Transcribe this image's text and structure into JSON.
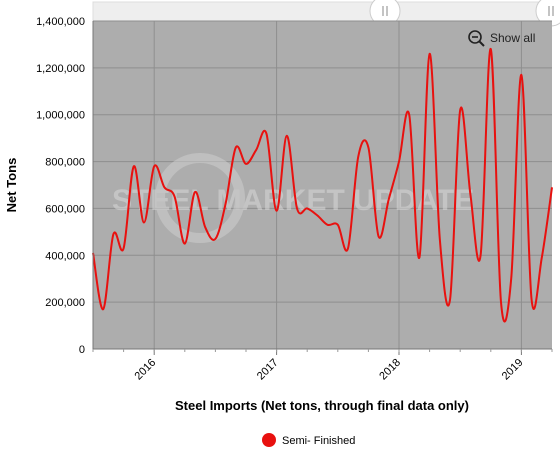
{
  "chart_data": {
    "type": "line",
    "title": "",
    "xlabel": "Steel Imports (Net tons, through final data only)",
    "ylabel": "Net Tons",
    "ylim": [
      0,
      1400000
    ],
    "yticks": [
      0,
      200000,
      400000,
      600000,
      800000,
      1000000,
      1200000,
      1400000
    ],
    "ytick_labels": [
      "0",
      "200,000",
      "400,000",
      "600,000",
      "800,000",
      "1,000,000",
      "1,200,000",
      "1,400,000"
    ],
    "xlim": [
      "2015-07",
      "2019-04"
    ],
    "xticks": [
      "2016-01",
      "2017-01",
      "2018-01",
      "2019-01"
    ],
    "xtick_labels": [
      "2016",
      "2017",
      "2018",
      "2019"
    ],
    "grid": true,
    "legend_position": "bottom-center",
    "series": [
      {
        "name": "Semi- Finished",
        "color": "#e8110f",
        "x": [
          "2015-07",
          "2015-08",
          "2015-09",
          "2015-10",
          "2015-11",
          "2015-12",
          "2016-01",
          "2016-02",
          "2016-03",
          "2016-04",
          "2016-05",
          "2016-06",
          "2016-07",
          "2016-08",
          "2016-09",
          "2016-10",
          "2016-11",
          "2016-12",
          "2017-01",
          "2017-02",
          "2017-03",
          "2017-04",
          "2017-05",
          "2017-06",
          "2017-07",
          "2017-08",
          "2017-09",
          "2017-10",
          "2017-11",
          "2017-12",
          "2018-01",
          "2018-02",
          "2018-03",
          "2018-04",
          "2018-05",
          "2018-06",
          "2018-07",
          "2018-08",
          "2018-09",
          "2018-10",
          "2018-11",
          "2018-12",
          "2019-01",
          "2019-02",
          "2019-03",
          "2019-04"
        ],
        "values": [
          410000,
          170000,
          490000,
          430000,
          780000,
          540000,
          780000,
          690000,
          650000,
          450000,
          670000,
          520000,
          470000,
          620000,
          860000,
          790000,
          850000,
          920000,
          590000,
          910000,
          600000,
          600000,
          570000,
          530000,
          530000,
          430000,
          820000,
          860000,
          480000,
          640000,
          800000,
          1000000,
          390000,
          1260000,
          470000,
          210000,
          1020000,
          660000,
          400000,
          1280000,
          200000,
          300000,
          1170000,
          210000,
          390000,
          690000
        ]
      }
    ]
  },
  "ui": {
    "show_all_label": "Show all",
    "watermark_text": "STEEL MARKET UPDATE",
    "colors": {
      "plot_background": "#adadad",
      "navigator_background": "#eeeeee",
      "grid": "#8e8e8e",
      "watermark": "#cfcfcf"
    }
  }
}
